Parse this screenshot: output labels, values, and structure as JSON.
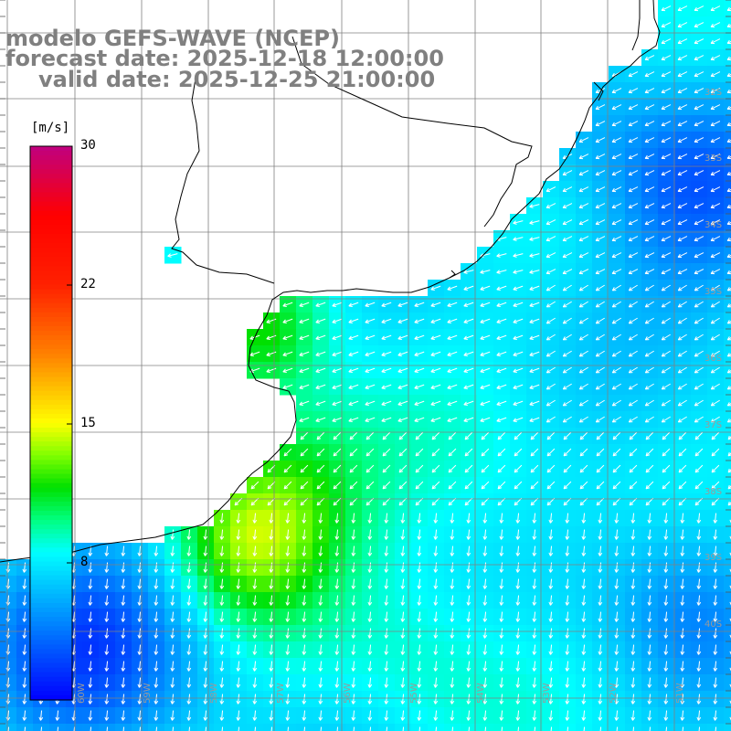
{
  "title": {
    "line1": "modelo GEFS-WAVE (NCEP)",
    "line2": "forecast date: 2025-12-18 12:00:00",
    "line3": "valid date: 2025-12-25 21:00:00"
  },
  "colorbar": {
    "unit": "[m/s]",
    "ticks": [
      "30",
      "22",
      "15",
      "8"
    ],
    "min": 0,
    "max": 30,
    "colors": [
      "#0000ff",
      "#0080ff",
      "#00ffff",
      "#00ff80",
      "#00e000",
      "#80ff00",
      "#ffff00",
      "#ff8000",
      "#ff2000",
      "#ff0000",
      "#c00080"
    ]
  },
  "axes": {
    "lat_labels": [
      "32S",
      "33S",
      "34S",
      "35S",
      "36S",
      "37S",
      "38S",
      "39S",
      "40S"
    ],
    "lon_labels": [
      "60W",
      "59W",
      "58W",
      "57W",
      "56W",
      "55W",
      "54W",
      "53W",
      "52W",
      "51W"
    ]
  },
  "colors": {
    "land": "#ffffff",
    "coast": "#000000",
    "grid": "#808080",
    "arrow": "#ffffff"
  }
}
